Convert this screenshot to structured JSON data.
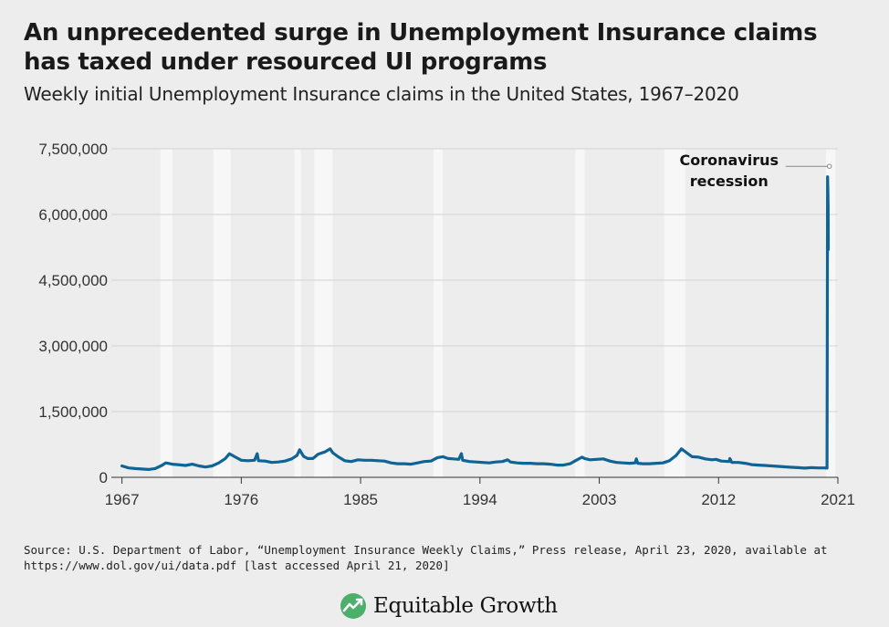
{
  "header": {
    "title": "An unprecedented surge in Unemployment Insurance claims has taxed under resourced UI programs",
    "subtitle": "Weekly initial Unemployment Insurance claims in the United States, 1967–2020"
  },
  "footer": {
    "source": "Source: U.S. Department of Labor, “Unemployment Insurance Weekly Claims,” Press release, April 23, 2020, available at https://www.dol.gov/ui/data.pdf [last accessed April 21, 2020]",
    "logo_text": "Equitable Growth"
  },
  "colors": {
    "background": "#ededed",
    "line": "#0f6496",
    "recession_band": "#f7f7f7",
    "gridline": "#d2d2d2",
    "logo_green": "#4caf6a"
  },
  "chart_data": {
    "type": "line",
    "title": "",
    "xlabel": "",
    "ylabel": "",
    "xlim": [
      1966.2,
      2021
    ],
    "ylim": [
      0,
      7500000
    ],
    "x_ticks": [
      1967,
      1976,
      1985,
      1994,
      2003,
      2012,
      2021
    ],
    "x_tick_labels": [
      "1967",
      "1976",
      "1985",
      "1994",
      "2003",
      "2012",
      "2021"
    ],
    "y_ticks": [
      0,
      1500000,
      3000000,
      4500000,
      6000000,
      7500000
    ],
    "y_tick_labels": [
      "0",
      "1,500,000",
      "3,000,000",
      "4,500,000",
      "6,000,000",
      "7,500,000"
    ],
    "grid": true,
    "legend": "none",
    "recessions": [
      [
        1969.9,
        1970.8
      ],
      [
        1973.9,
        1975.2
      ],
      [
        1980.0,
        1980.5
      ],
      [
        1981.5,
        1982.9
      ],
      [
        1990.5,
        1991.2
      ],
      [
        2001.2,
        2001.9
      ],
      [
        2007.9,
        2009.5
      ],
      [
        2020.1,
        2020.8
      ]
    ],
    "series": [
      {
        "values": [
          [
            1967.0,
            260000
          ],
          [
            1967.5,
            215000
          ],
          [
            1968.0,
            200000
          ],
          [
            1968.5,
            190000
          ],
          [
            1969.0,
            180000
          ],
          [
            1969.5,
            200000
          ],
          [
            1970.0,
            270000
          ],
          [
            1970.3,
            330000
          ],
          [
            1970.8,
            300000
          ],
          [
            1971.2,
            290000
          ],
          [
            1971.8,
            270000
          ],
          [
            1972.3,
            300000
          ],
          [
            1972.8,
            260000
          ],
          [
            1973.3,
            235000
          ],
          [
            1973.8,
            260000
          ],
          [
            1974.3,
            330000
          ],
          [
            1974.8,
            430000
          ],
          [
            1975.1,
            540000
          ],
          [
            1975.5,
            470000
          ],
          [
            1976.0,
            390000
          ],
          [
            1976.5,
            380000
          ],
          [
            1977.0,
            390000
          ],
          [
            1977.2,
            540000
          ],
          [
            1977.3,
            380000
          ],
          [
            1977.8,
            370000
          ],
          [
            1978.3,
            340000
          ],
          [
            1978.8,
            350000
          ],
          [
            1979.3,
            370000
          ],
          [
            1979.8,
            420000
          ],
          [
            1980.2,
            500000
          ],
          [
            1980.4,
            630000
          ],
          [
            1980.7,
            480000
          ],
          [
            1981.0,
            430000
          ],
          [
            1981.4,
            430000
          ],
          [
            1981.8,
            530000
          ],
          [
            1982.3,
            580000
          ],
          [
            1982.7,
            650000
          ],
          [
            1982.9,
            560000
          ],
          [
            1983.3,
            470000
          ],
          [
            1983.8,
            380000
          ],
          [
            1984.3,
            360000
          ],
          [
            1984.8,
            400000
          ],
          [
            1985.3,
            390000
          ],
          [
            1985.8,
            390000
          ],
          [
            1986.3,
            380000
          ],
          [
            1986.8,
            370000
          ],
          [
            1987.3,
            330000
          ],
          [
            1987.8,
            310000
          ],
          [
            1988.3,
            310000
          ],
          [
            1988.8,
            300000
          ],
          [
            1989.3,
            330000
          ],
          [
            1989.8,
            360000
          ],
          [
            1990.3,
            370000
          ],
          [
            1990.8,
            450000
          ],
          [
            1991.2,
            470000
          ],
          [
            1991.6,
            430000
          ],
          [
            1992.0,
            420000
          ],
          [
            1992.4,
            410000
          ],
          [
            1992.6,
            540000
          ],
          [
            1992.7,
            390000
          ],
          [
            1993.2,
            360000
          ],
          [
            1993.7,
            350000
          ],
          [
            1994.2,
            340000
          ],
          [
            1994.7,
            330000
          ],
          [
            1995.2,
            350000
          ],
          [
            1995.7,
            360000
          ],
          [
            1996.1,
            400000
          ],
          [
            1996.3,
            350000
          ],
          [
            1996.8,
            330000
          ],
          [
            1997.3,
            320000
          ],
          [
            1997.8,
            320000
          ],
          [
            1998.3,
            310000
          ],
          [
            1998.8,
            310000
          ],
          [
            1999.3,
            300000
          ],
          [
            1999.8,
            280000
          ],
          [
            2000.3,
            280000
          ],
          [
            2000.8,
            310000
          ],
          [
            2001.2,
            380000
          ],
          [
            2001.7,
            460000
          ],
          [
            2001.9,
            430000
          ],
          [
            2002.3,
            400000
          ],
          [
            2002.8,
            410000
          ],
          [
            2003.3,
            420000
          ],
          [
            2003.8,
            370000
          ],
          [
            2004.3,
            340000
          ],
          [
            2004.8,
            330000
          ],
          [
            2005.3,
            320000
          ],
          [
            2005.7,
            330000
          ],
          [
            2005.8,
            420000
          ],
          [
            2005.9,
            320000
          ],
          [
            2006.3,
            310000
          ],
          [
            2006.8,
            310000
          ],
          [
            2007.3,
            320000
          ],
          [
            2007.8,
            330000
          ],
          [
            2008.3,
            380000
          ],
          [
            2008.8,
            500000
          ],
          [
            2009.2,
            650000
          ],
          [
            2009.6,
            560000
          ],
          [
            2010.0,
            470000
          ],
          [
            2010.5,
            460000
          ],
          [
            2011.0,
            420000
          ],
          [
            2011.5,
            400000
          ],
          [
            2011.8,
            410000
          ],
          [
            2012.2,
            370000
          ],
          [
            2012.8,
            360000
          ],
          [
            2012.85,
            430000
          ],
          [
            2013.0,
            340000
          ],
          [
            2013.5,
            340000
          ],
          [
            2014.0,
            320000
          ],
          [
            2014.5,
            290000
          ],
          [
            2015.0,
            280000
          ],
          [
            2015.5,
            270000
          ],
          [
            2016.0,
            260000
          ],
          [
            2016.5,
            250000
          ],
          [
            2017.0,
            240000
          ],
          [
            2017.5,
            230000
          ],
          [
            2018.0,
            220000
          ],
          [
            2018.5,
            210000
          ],
          [
            2019.0,
            220000
          ],
          [
            2019.5,
            215000
          ],
          [
            2020.0,
            215000
          ],
          [
            2020.18,
            211000
          ],
          [
            2020.2,
            3300000
          ],
          [
            2020.22,
            6860000
          ],
          [
            2020.24,
            6600000
          ],
          [
            2020.26,
            6200000
          ],
          [
            2020.28,
            5200000
          ]
        ]
      }
    ],
    "annotations": [
      {
        "text_line1": "Coronavirus",
        "text_line2": "recession",
        "x": 2020.5,
        "y": 7100000
      }
    ]
  }
}
